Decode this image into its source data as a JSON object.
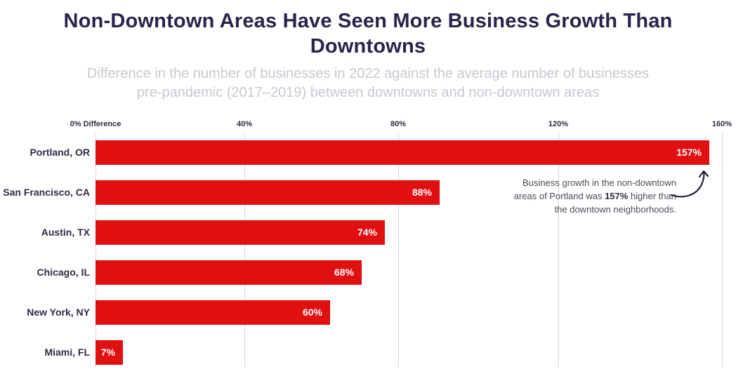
{
  "header": {
    "title_line1": "Non-Downtown Areas Have Seen More Business Growth Than",
    "title_line2": "Downtowns",
    "subtitle_line1": "Difference in the number of businesses in 2022 against the average number of businesses",
    "subtitle_line2": "pre-pandemic (2017–2019) between downtowns and non-downtown areas"
  },
  "chart_data": {
    "type": "bar",
    "orientation": "horizontal",
    "title": "Non-Downtown Areas Have Seen More Business Growth Than Downtowns",
    "subtitle": "Difference in the number of businesses in 2022 against the average number of businesses pre-pandemic (2017–2019) between downtowns and non-downtown areas",
    "categories": [
      "Portland, OR",
      "San Francisco, CA",
      "Austin, TX",
      "Chicago, IL",
      "New York, NY",
      "Miami, FL"
    ],
    "values": [
      157,
      88,
      74,
      68,
      60,
      7
    ],
    "value_labels": [
      "157%",
      "88%",
      "74%",
      "68%",
      "60%",
      "7%"
    ],
    "x_axis": {
      "range": [
        0,
        160
      ],
      "grid": true,
      "ticks": [
        {
          "label": "0% Difference",
          "pct": 0
        },
        {
          "label": "40%",
          "pct": 40
        },
        {
          "label": "80%",
          "pct": 80
        },
        {
          "label": "120%",
          "pct": 120
        },
        {
          "label": "160%",
          "pct": 160
        }
      ]
    },
    "legend": null,
    "annotation": {
      "line1": "Business growth in the non-downtown",
      "line2_pre": "areas of Portland was ",
      "line2_bold": "157%",
      "line2_post": " higher than",
      "line3": "the downtown neighborhoods."
    }
  },
  "colors": {
    "bar": "#e01010",
    "title": "#29244a",
    "subtitle": "#c8c8d1",
    "axis_text": "#2b2d42",
    "gridline": "#d8d8dc",
    "annotation_text": "#4b4c59",
    "arrow": "#1d2438",
    "background": "#ffffff"
  }
}
